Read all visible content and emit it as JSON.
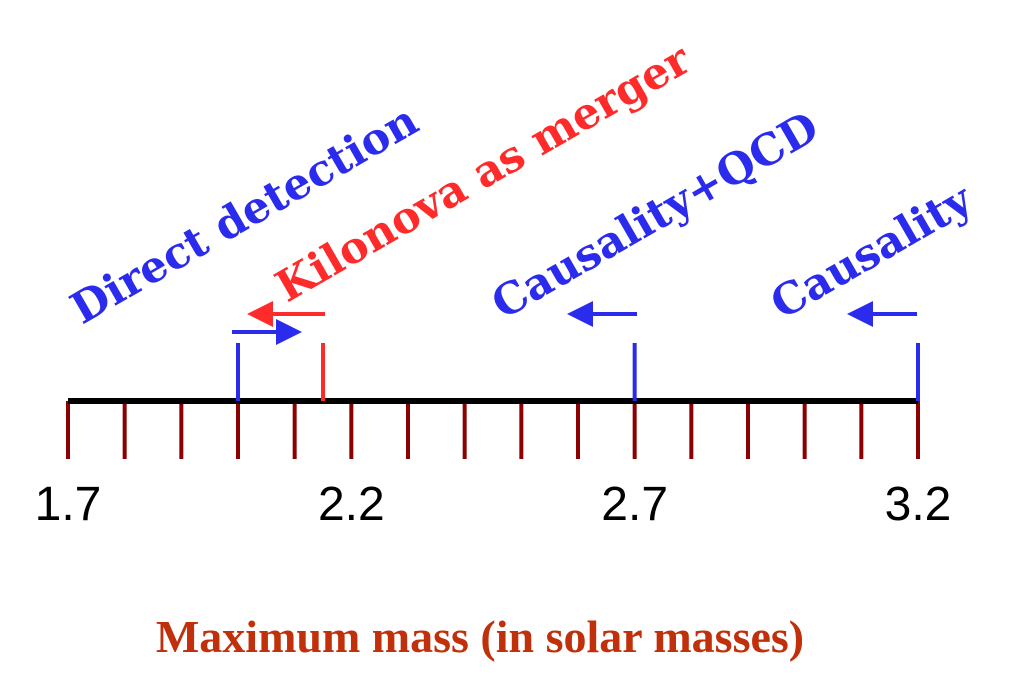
{
  "axis": {
    "min": 1.7,
    "max": 3.2,
    "minor_step": 0.1,
    "tick_labels": [
      "1.7",
      "2.2",
      "2.7",
      "3.2"
    ],
    "line_color": "#000000",
    "tick_color": "#8b0000",
    "title": "Maximum mass (in solar masses)",
    "title_color": "#c0300a"
  },
  "constraints": [
    {
      "label": "Direct detection",
      "value": 2.0,
      "direction": "right",
      "color": "#2b2bee"
    },
    {
      "label": "Kilonova as merger",
      "value": 2.15,
      "direction": "left",
      "color": "#ff2a2a"
    },
    {
      "label": "Causality+QCD",
      "value": 2.7,
      "direction": "left",
      "color": "#2b2bee"
    },
    {
      "label": "Causality",
      "value": 3.2,
      "direction": "left",
      "color": "#2b2bee"
    }
  ]
}
